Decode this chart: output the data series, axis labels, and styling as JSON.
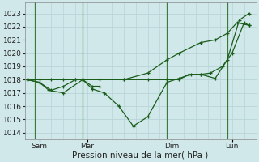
{
  "background_color": "#d0e8ea",
  "grid_color": "#b8d4d8",
  "line_color": "#1a5c1a",
  "marker_color": "#1a5c1a",
  "ylabel_ticks": [
    1014,
    1015,
    1016,
    1017,
    1018,
    1019,
    1020,
    1021,
    1022,
    1023
  ],
  "ylim": [
    1013.5,
    1023.8
  ],
  "xlabel": "Pression niveau de la mer( hPa )",
  "day_labels": [
    "Sam",
    "Mar",
    "Dim",
    "Lun"
  ],
  "day_positions": [
    0.5,
    2.5,
    6.0,
    8.5
  ],
  "vline_positions": [
    0.3,
    2.3,
    5.8,
    8.3
  ],
  "series": [
    {
      "x": [
        0.0,
        0.5,
        0.9,
        1.5,
        2.3,
        2.7,
        3.2,
        3.8,
        4.4,
        5.0,
        5.8,
        6.3,
        6.8,
        7.2,
        7.8,
        8.3,
        8.8,
        9.2
      ],
      "y": [
        1018.0,
        1017.8,
        1017.2,
        1017.0,
        1018.0,
        1017.3,
        1017.0,
        1016.0,
        1014.5,
        1015.2,
        1017.8,
        1018.1,
        1018.4,
        1018.4,
        1018.1,
        1019.5,
        1022.5,
        1023.0
      ]
    },
    {
      "x": [
        0.0,
        0.5,
        1.0,
        1.5,
        2.0,
        2.3,
        3.0,
        4.0,
        5.0,
        5.8,
        6.3,
        6.7,
        7.2,
        7.6,
        8.1,
        8.5,
        9.0,
        9.2
      ],
      "y": [
        1018.0,
        1018.0,
        1018.0,
        1018.0,
        1018.0,
        1018.0,
        1018.0,
        1018.0,
        1018.0,
        1018.0,
        1018.0,
        1018.4,
        1018.4,
        1018.5,
        1019.0,
        1020.0,
        1022.3,
        1022.1
      ]
    },
    {
      "x": [
        0.0,
        2.3,
        4.0,
        5.0,
        5.8,
        6.3,
        7.2,
        7.8,
        8.3,
        8.7,
        9.2
      ],
      "y": [
        1018.0,
        1018.0,
        1018.0,
        1018.5,
        1019.5,
        1020.0,
        1020.8,
        1021.0,
        1021.5,
        1022.3,
        1022.1
      ]
    },
    {
      "x": [
        0.0,
        0.5,
        1.0,
        1.5,
        2.0,
        2.3,
        2.7,
        3.0
      ],
      "y": [
        1018.0,
        1017.8,
        1017.2,
        1017.5,
        1018.0,
        1018.0,
        1017.5,
        1017.5
      ]
    }
  ],
  "vline_color": "#3a7a3a",
  "xlim": [
    -0.1,
    9.5
  ],
  "tick_fontsize": 6.5,
  "label_fontsize": 7.5
}
